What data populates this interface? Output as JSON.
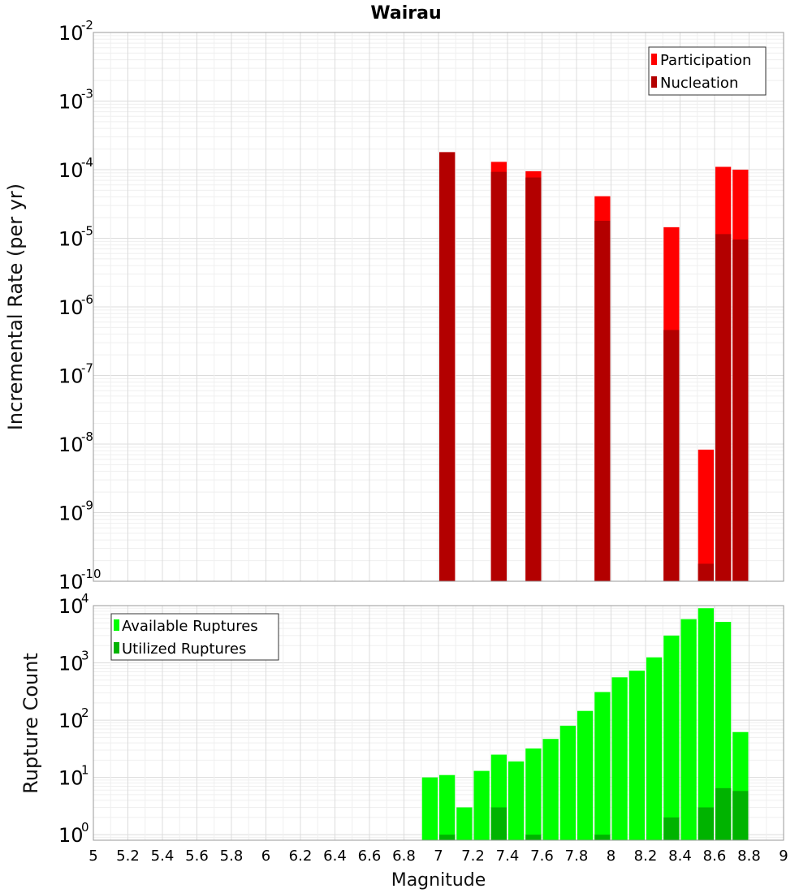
{
  "chart_data": [
    {
      "type": "bar",
      "title": "Wairau",
      "xlabel": "",
      "ylabel": "Incremental Rate (per yr)",
      "yscale": "log",
      "xlim": [
        5,
        9
      ],
      "ylim": [
        1e-10,
        0.01
      ],
      "yticks": [
        {
          "base": "10",
          "exp": "-2",
          "value": 0.01
        },
        {
          "base": "10",
          "exp": "-3",
          "value": 0.001
        },
        {
          "base": "10",
          "exp": "-4",
          "value": 0.0001
        },
        {
          "base": "10",
          "exp": "-5",
          "value": 1e-05
        },
        {
          "base": "10",
          "exp": "-6",
          "value": 1e-06
        },
        {
          "base": "10",
          "exp": "-7",
          "value": 1e-07
        },
        {
          "base": "10",
          "exp": "-8",
          "value": 1e-08
        },
        {
          "base": "10",
          "exp": "-9",
          "value": 1e-09
        },
        {
          "base": "10",
          "exp": "-10",
          "value": 1e-10
        }
      ],
      "legend_position": "top-right",
      "grid": true,
      "x": [
        7.05,
        7.35,
        7.55,
        7.95,
        8.35,
        8.55,
        8.65,
        8.75
      ],
      "series": [
        {
          "name": "Participation",
          "color": "#ff0000",
          "values": [
            0.00018,
            0.00013,
            9.5e-05,
            4.1e-05,
            1.45e-05,
            8.3e-09,
            0.00011,
            0.0001
          ]
        },
        {
          "name": "Nucleation",
          "color": "#b30000",
          "values": [
            0.00018,
            9.3e-05,
            7.7e-05,
            1.8e-05,
            4.6e-07,
            1.8e-10,
            1.15e-05,
            9.6e-06
          ]
        }
      ]
    },
    {
      "type": "bar",
      "title": "",
      "xlabel": "Magnitude",
      "ylabel": "Rupture Count",
      "yscale": "log",
      "xlim": [
        5,
        9
      ],
      "ylim": [
        0.8,
        10000
      ],
      "yticks": [
        {
          "base": "10",
          "exp": "4",
          "value": 10000
        },
        {
          "base": "10",
          "exp": "3",
          "value": 1000
        },
        {
          "base": "10",
          "exp": "2",
          "value": 100
        },
        {
          "base": "10",
          "exp": "1",
          "value": 10
        },
        {
          "base": "10",
          "exp": "0",
          "value": 1
        }
      ],
      "xticks": [
        "5",
        "5.2",
        "5.4",
        "5.6",
        "5.8",
        "6",
        "6.2",
        "6.4",
        "6.6",
        "6.8",
        "7",
        "7.2",
        "7.4",
        "7.6",
        "7.8",
        "8",
        "8.2",
        "8.4",
        "8.6",
        "8.8",
        "9"
      ],
      "legend_position": "top-left",
      "grid": true,
      "x": [
        6.95,
        7.05,
        7.15,
        7.25,
        7.35,
        7.45,
        7.55,
        7.65,
        7.75,
        7.85,
        7.95,
        8.05,
        8.15,
        8.25,
        8.35,
        8.45,
        8.55,
        8.65,
        8.75
      ],
      "series": [
        {
          "name": "Available Ruptures",
          "color": "#00ff00",
          "values": [
            10,
            11,
            3,
            13,
            25,
            19,
            32,
            47,
            80,
            145,
            310,
            560,
            730,
            1250,
            3000,
            5800,
            9000,
            5200,
            62
          ]
        },
        {
          "name": "Utilized Ruptures",
          "color": "#00b300",
          "values": [
            0,
            1,
            0,
            0,
            3,
            0,
            1,
            0,
            0,
            0,
            1,
            0,
            0,
            0,
            2,
            0,
            3,
            6.5,
            5.8
          ]
        }
      ]
    }
  ]
}
